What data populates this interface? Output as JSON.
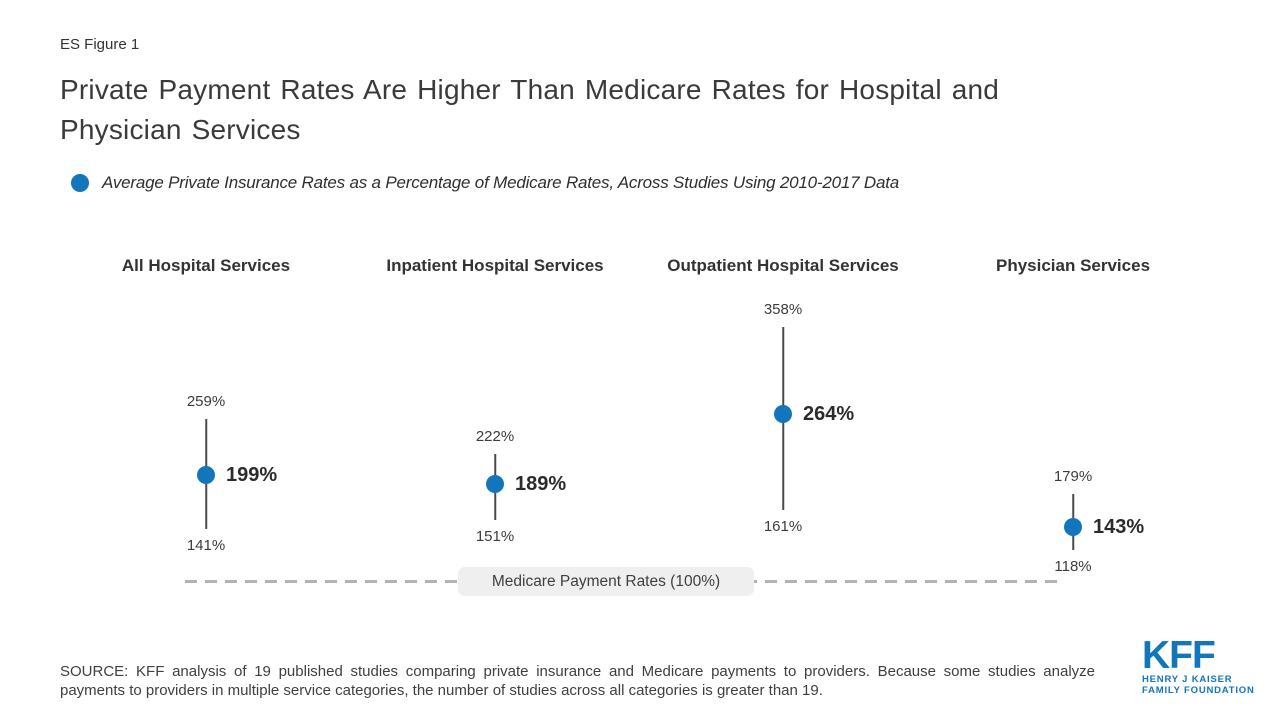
{
  "figure_label": "ES Figure 1",
  "title_lines": [
    "Private Payment Rates Are Higher Than Medicare Rates for Hospital and",
    "Physician Services"
  ],
  "subtitle": "Average Private Insurance Rates as a Percentage of Medicare Rates, Across Studies Using 2010-2017 Data",
  "chart_data": {
    "type": "scatter",
    "subtype": "dot-and-range",
    "unit": "%",
    "categories": [
      "All Hospital Services",
      "Inpatient Hospital Services",
      "Outpatient Hospital Services",
      "Physician Services"
    ],
    "series": [
      {
        "name": "Average Private Insurance Rates as a Percentage of Medicare Rates",
        "values": [
          199,
          189,
          264,
          143
        ]
      }
    ],
    "ranges": {
      "min": [
        141,
        151,
        161,
        118
      ],
      "max": [
        259,
        222,
        358,
        179
      ]
    },
    "points": [
      {
        "category": "All Hospital Services",
        "value": 199,
        "min": 141,
        "max": 259,
        "value_label": "199%",
        "min_label": "141%",
        "max_label": "259%"
      },
      {
        "category": "Inpatient Hospital Services",
        "value": 189,
        "min": 151,
        "max": 222,
        "value_label": "189%",
        "min_label": "151%",
        "max_label": "222%"
      },
      {
        "category": "Outpatient Hospital Services",
        "value": 264,
        "min": 161,
        "max": 358,
        "value_label": "264%",
        "min_label": "161%",
        "max_label": "358%"
      },
      {
        "category": "Physician Services",
        "value": 143,
        "min": 118,
        "max": 179,
        "value_label": "143%",
        "min_label": "118%",
        "max_label": "179%"
      }
    ],
    "baseline": {
      "label": "Medicare Payment Rates (100%)",
      "value": 100
    },
    "ylim": [
      100,
      370
    ],
    "grid": false,
    "legend_position": "top-left"
  },
  "source_lines": [
    "SOURCE: KFF analysis of 19 published studies comparing private insurance and Medicare payments to providers. Because some studies analyze",
    "payments to providers in multiple service categories, the number of studies across all categories is greater than 19."
  ],
  "logo": {
    "name": "KFF",
    "sub1": "HENRY J KAISER",
    "sub2": "FAMILY FOUNDATION"
  },
  "colors": {
    "accent_blue": "#1176bc",
    "text_dark": "#333333",
    "title_gray": "#3a3a3a",
    "dash_gray": "#b3b3b3",
    "pill_bg": "#efefef",
    "range_line": "#4a4a4a"
  }
}
